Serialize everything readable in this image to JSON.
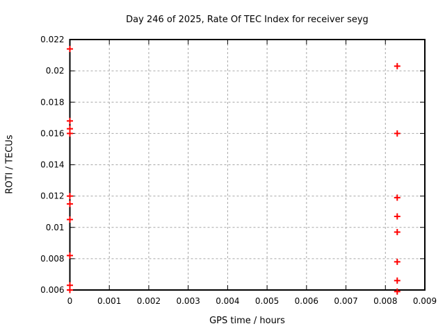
{
  "page": {
    "background": "#ffffff"
  },
  "chart_data": {
    "type": "scatter",
    "title": "Day 246 of 2025, Rate Of TEC Index for receiver seyg",
    "xlabel": "GPS time / hours",
    "ylabel": "ROTI / TECUs",
    "xlim": [
      0,
      0.009
    ],
    "ylim": [
      0.006,
      0.022
    ],
    "xticks": {
      "values": [
        0,
        0.001,
        0.002,
        0.003,
        0.004,
        0.005,
        0.006,
        0.007,
        0.008,
        0.009
      ],
      "labels": [
        "0",
        "0.001",
        "0.002",
        "0.003",
        "0.004",
        "0.005",
        "0.006",
        "0.007",
        "0.008",
        "0.009"
      ]
    },
    "yticks": {
      "values": [
        0.006,
        0.008,
        0.01,
        0.012,
        0.014,
        0.016,
        0.018,
        0.02,
        0.022
      ],
      "labels": [
        "0.006",
        "0.008",
        "0.01",
        "0.012",
        "0.014",
        "0.016",
        "0.018",
        "0.02",
        "0.022"
      ]
    },
    "grid": true,
    "legend_position": "none",
    "colors": {
      "marker": "#ff0000",
      "grid": "#a6a6a6",
      "axis": "#000000",
      "text": "#000000"
    },
    "marker": {
      "shape": "plus",
      "size": 9
    },
    "series": [
      {
        "name": "ROTI",
        "points": [
          [
            0,
            0.0214
          ],
          [
            0,
            0.0168
          ],
          [
            0,
            0.0163
          ],
          [
            0,
            0.016
          ],
          [
            0,
            0.012
          ],
          [
            0,
            0.0115
          ],
          [
            0,
            0.0105
          ],
          [
            0,
            0.0082
          ],
          [
            0,
            0.0063
          ],
          [
            0,
            0.006
          ],
          [
            0.0083,
            0.0203
          ],
          [
            0.0083,
            0.016
          ],
          [
            0.0083,
            0.0119
          ],
          [
            0.0083,
            0.0107
          ],
          [
            0.0083,
            0.0097
          ],
          [
            0.0083,
            0.0078
          ],
          [
            0.0083,
            0.0066
          ],
          [
            0.0083,
            0.0059
          ]
        ]
      }
    ]
  }
}
